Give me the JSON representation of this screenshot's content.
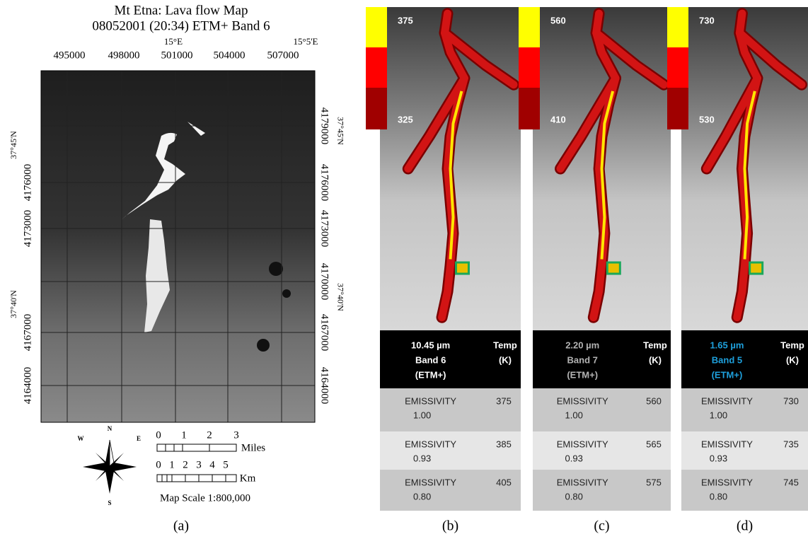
{
  "panel_a": {
    "title": "Mt Etna: Lava flow Map",
    "subtitle": "08052001 (20:34) ETM+ Band 6",
    "easting_labels": [
      "495000",
      "498000",
      "501000",
      "504000",
      "507000"
    ],
    "longitude_labels": [
      "15°E",
      "15°5'E"
    ],
    "northing_labels": [
      "4179000",
      "4176000",
      "4173000",
      "4170000",
      "4167000",
      "4164000"
    ],
    "latitude_labels": [
      "37°45'N",
      "37°40'N"
    ],
    "miles_ticks": [
      "0",
      "1",
      "2",
      "3"
    ],
    "miles_unit": "Miles",
    "km_ticks": [
      "0",
      "1",
      "2",
      "3",
      "4",
      "5"
    ],
    "km_unit": "Km",
    "compass": [
      "N",
      "E",
      "S",
      "W"
    ],
    "scale_text": "Map Scale 1:800,000",
    "caption": "(a)"
  },
  "row_label": "EMISSIVITY",
  "temp_header": [
    "Temp",
    "(K)"
  ],
  "panels": [
    {
      "scale_max": 375,
      "scale_min": 325,
      "wavelength": "10.45 µm",
      "band": "Band 6",
      "sensor": "(ETM+)",
      "header_color": "#ffffff",
      "caption": "(b)",
      "rows": [
        {
          "emissivity": "1.00",
          "temp": 375
        },
        {
          "emissivity": "0.93",
          "temp": 385
        },
        {
          "emissivity": "0.80",
          "temp": 405
        }
      ]
    },
    {
      "scale_max": 560,
      "scale_min": 410,
      "wavelength": "2.20 µm",
      "band": "Band 7",
      "sensor": "(ETM+)",
      "header_color": "#b4b4b4",
      "caption": "(c)",
      "rows": [
        {
          "emissivity": "1.00",
          "temp": 560
        },
        {
          "emissivity": "0.93",
          "temp": 565
        },
        {
          "emissivity": "0.80",
          "temp": 575
        }
      ]
    },
    {
      "scale_max": 730,
      "scale_min": 530,
      "wavelength": "1.65 µm",
      "band": "Band 5",
      "sensor": "(ETM+)",
      "header_color": "#1ea0dc",
      "caption": "(d)",
      "rows": [
        {
          "emissivity": "1.00",
          "temp": 730
        },
        {
          "emissivity": "0.93",
          "temp": 735
        },
        {
          "emissivity": "0.80",
          "temp": 745
        }
      ]
    }
  ]
}
